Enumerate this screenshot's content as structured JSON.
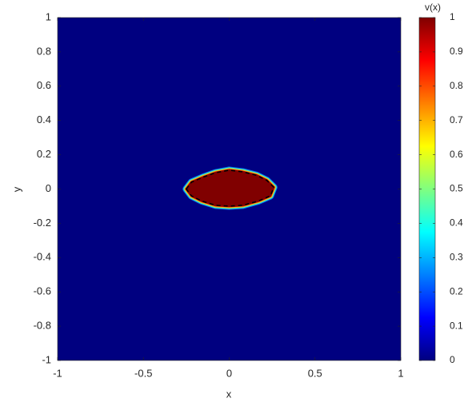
{
  "chart_data": {
    "type": "heatmap",
    "x_label": "x",
    "y_label": "y",
    "xlim": [
      -1,
      1
    ],
    "ylim": [
      -1,
      1
    ],
    "xticks": [
      -1,
      -0.5,
      0,
      0.5,
      1
    ],
    "yticks": [
      -1,
      -0.8,
      -0.6,
      -0.4,
      -0.2,
      0,
      0.2,
      0.4,
      0.6,
      0.8,
      1
    ],
    "colormap": "jet",
    "background_value": 0,
    "region": {
      "value": 1,
      "x": [
        -0.25,
        -0.22,
        -0.15,
        -0.08,
        0,
        0.08,
        0.16,
        0.22,
        0.26,
        0.24,
        0.17,
        0.08,
        0,
        -0.08,
        -0.16,
        -0.22
      ],
      "y": [
        0,
        0.04,
        0.07,
        0.095,
        0.11,
        0.1,
        0.08,
        0.05,
        0.01,
        -0.04,
        -0.07,
        -0.095,
        -0.1,
        -0.095,
        -0.07,
        -0.04
      ]
    },
    "boundary_color": "#000000",
    "colorbar": {
      "label": "v(x)",
      "lim": [
        0,
        1
      ],
      "ticks": [
        0,
        0.1,
        0.2,
        0.3,
        0.4,
        0.5,
        0.6,
        0.7,
        0.8,
        0.9,
        1
      ]
    }
  }
}
